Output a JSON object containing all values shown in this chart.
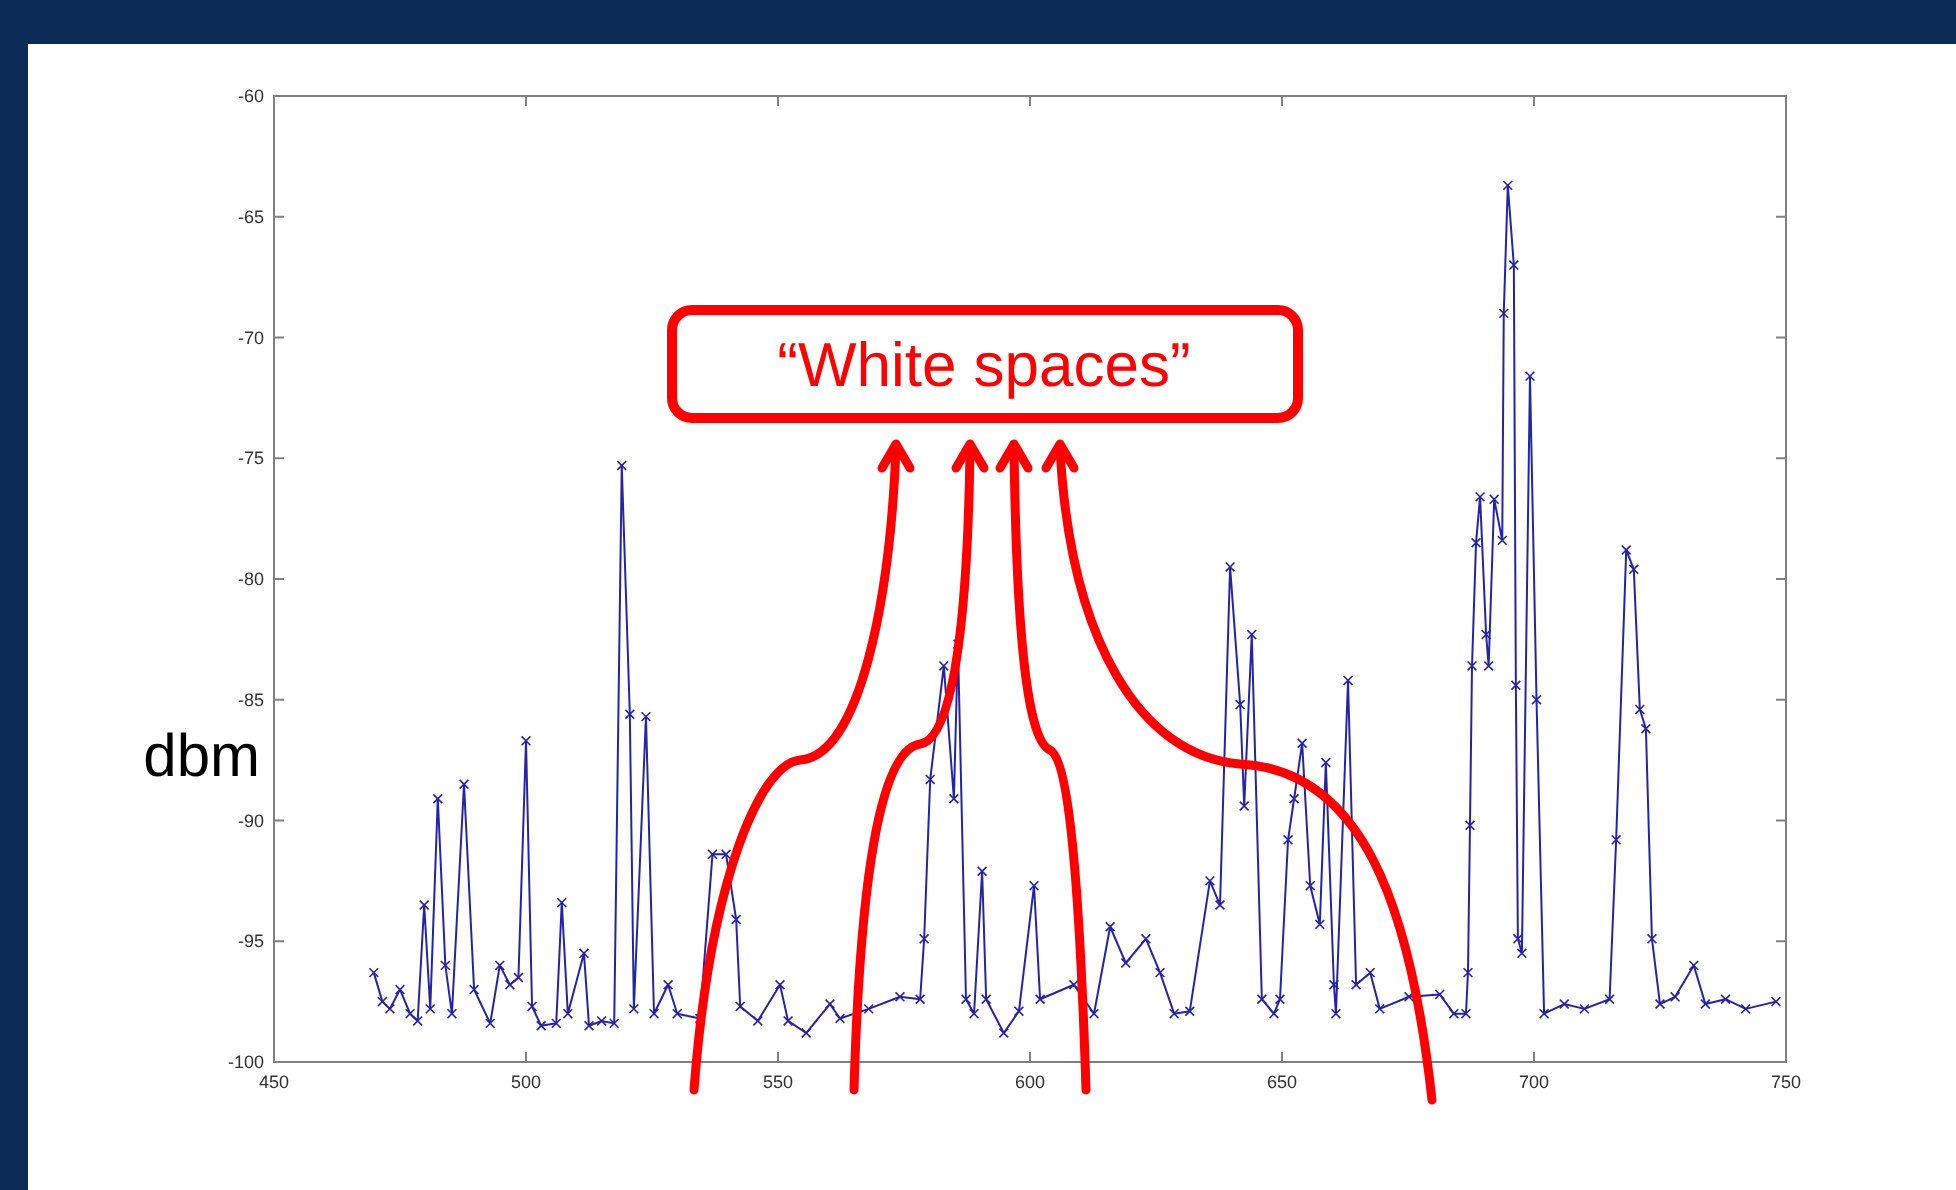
{
  "chart_data": {
    "type": "line",
    "ylabel": "dbm",
    "xlim": [
      450,
      750
    ],
    "xticks": [
      450,
      500,
      550,
      600,
      650,
      700,
      750
    ],
    "ylim": [
      -100,
      -60
    ],
    "yticks": [
      -100,
      -95,
      -90,
      -85,
      -80,
      -75,
      -70,
      -65,
      -60
    ],
    "grid": false,
    "marker": "cross",
    "line_style": "solid",
    "annotations": [
      "“White spaces”"
    ],
    "series": [
      {
        "color": "#2424a8",
        "x": [
          469.8,
          471.5,
          473,
          475,
          477,
          478.5,
          479.8,
          481,
          482.5,
          484,
          485.3,
          487.7,
          489.7,
          492.9,
          494.8,
          496.8,
          498.5,
          500,
          501.2,
          503,
          506,
          507.1,
          508.3,
          511.5,
          512.5,
          515,
          517.5,
          519,
          520.6,
          521.4,
          523.8,
          525.4,
          528.2,
          530,
          534.5,
          537,
          539.7,
          541.7,
          542.5,
          546,
          550.4,
          552,
          555.6,
          560.3,
          562.3,
          568,
          574.2,
          578.2,
          579,
          580.2,
          582.9,
          584.9,
          585.7,
          587.3,
          588.9,
          590.5,
          591.3,
          594.8,
          597.8,
          600.8,
          602,
          608.7,
          612.7,
          615.9,
          619,
          623,
          625.8,
          628.6,
          631.7,
          635.7,
          637.7,
          639.7,
          641.7,
          642.5,
          644,
          646,
          648.4,
          649.6,
          651.2,
          652.4,
          654,
          655.6,
          657.5,
          658.7,
          660.3,
          660.7,
          663.1,
          664.7,
          667.5,
          669.4,
          675.2,
          681.3,
          684.1,
          686.5,
          686.9,
          687.3,
          687.7,
          688.5,
          689.3,
          690.5,
          691,
          692.1,
          693.7,
          694,
          694.8,
          696,
          696.4,
          696.8,
          697.6,
          699.2,
          700.5,
          702,
          706,
          710,
          715,
          716.3,
          718.3,
          719.8,
          721,
          722.2,
          723.4,
          725,
          728,
          731.7,
          734,
          738,
          742,
          748
        ],
        "values": [
          -96.3,
          -97.5,
          -97.8,
          -97,
          -98,
          -98.3,
          -93.5,
          -97.8,
          -89.1,
          -96,
          -98,
          -88.5,
          -97,
          -98.4,
          -96,
          -96.8,
          -96.5,
          -86.7,
          -97.7,
          -98.5,
          -98.4,
          -93.4,
          -98,
          -95.5,
          -98.5,
          -98.3,
          -98.4,
          -75.3,
          -85.6,
          -97.8,
          -85.7,
          -98,
          -96.8,
          -98,
          -98.2,
          -91.4,
          -91.4,
          -94.1,
          -97.7,
          -98.3,
          -96.8,
          -98.3,
          -98.8,
          -97.6,
          -98.2,
          -97.8,
          -97.3,
          -97.4,
          -94.9,
          -88.3,
          -83.6,
          -89.1,
          -82.7,
          -97.4,
          -98,
          -92.1,
          -97.4,
          -98.8,
          -97.9,
          -92.7,
          -97.4,
          -96.8,
          -98,
          -94.4,
          -95.9,
          -94.9,
          -96.3,
          -98,
          -97.9,
          -92.5,
          -93.5,
          -79.5,
          -85.2,
          -89.4,
          -82.3,
          -97.4,
          -98,
          -97.4,
          -90.8,
          -89.1,
          -86.8,
          -92.7,
          -94.3,
          -87.6,
          -96.8,
          -98,
          -84.2,
          -96.8,
          -96.3,
          -97.8,
          -97.3,
          -97.2,
          -98,
          -98,
          -96.3,
          -90.2,
          -83.6,
          -78.5,
          -76.6,
          -82.3,
          -83.6,
          -76.7,
          -78.4,
          -69,
          -63.7,
          -67,
          -84.4,
          -94.9,
          -95.5,
          -71.6,
          -85,
          -98,
          -97.6,
          -97.8,
          -97.4,
          -90.8,
          -78.8,
          -79.6,
          -85.4,
          -86.2,
          -94.9,
          -97.6,
          -97.3,
          -96,
          -97.6,
          -97.4,
          -97.8,
          -97.5
        ]
      }
    ]
  }
}
